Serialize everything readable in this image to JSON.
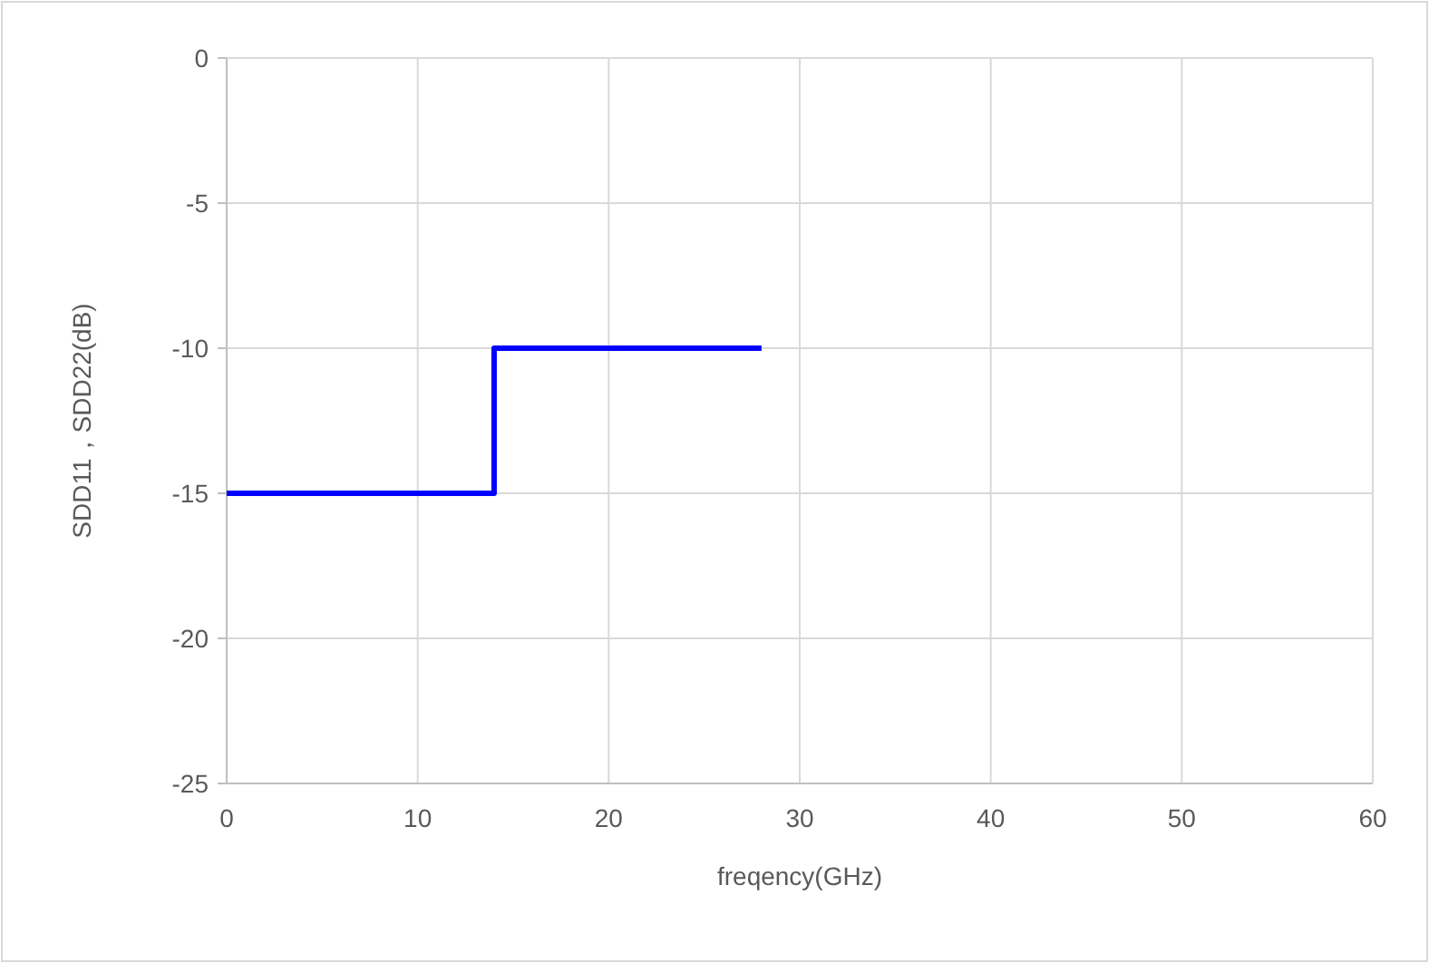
{
  "chart_data": {
    "type": "step",
    "xlabel": "freqency(GHz)",
    "ylabel": "SDD11，SDD22(dB)",
    "x": [
      0,
      14,
      28
    ],
    "series": [
      {
        "color": "#0000ff",
        "values": [
          -15,
          -10,
          -10
        ]
      }
    ],
    "xlim": [
      0,
      60
    ],
    "xticks": [
      0,
      10,
      20,
      30,
      40,
      50,
      60
    ],
    "ylim": [
      -25,
      0
    ],
    "yticks": [
      -25,
      -20,
      -15,
      -10,
      -5,
      0
    ],
    "grid": true,
    "marker": "none",
    "line_style": "solid"
  }
}
